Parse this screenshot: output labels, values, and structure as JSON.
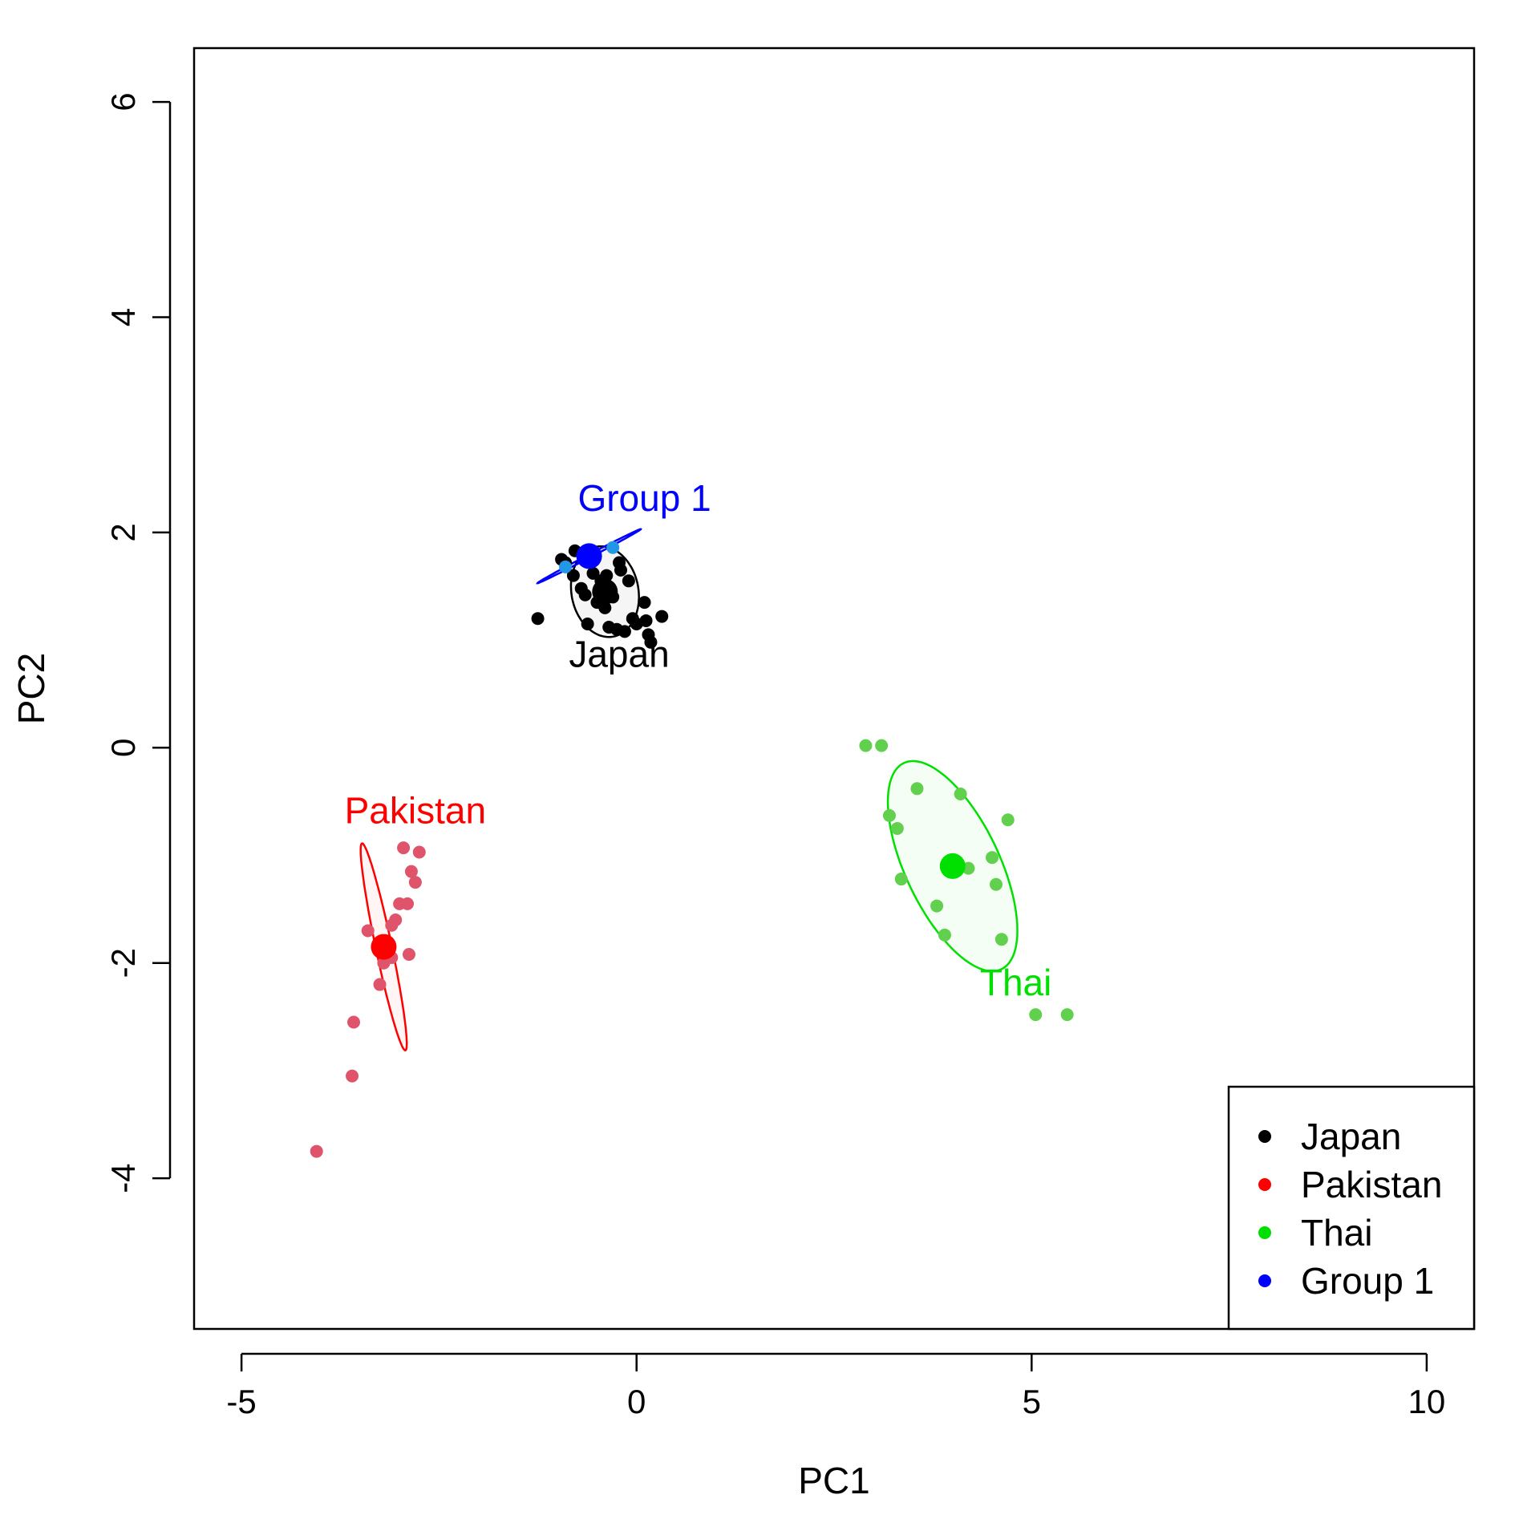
{
  "chart_data": {
    "type": "scatter",
    "title": "",
    "xlabel": "PC1",
    "ylabel": "PC2",
    "xlim": [
      -5.6,
      10.6
    ],
    "ylim": [
      -5.4,
      6.5
    ],
    "xticks": [
      -5,
      0,
      5,
      10
    ],
    "yticks": [
      -4,
      -2,
      0,
      2,
      4,
      6
    ],
    "xtick_labels": [
      "-5",
      "0",
      "5",
      "10"
    ],
    "ytick_labels": [
      "-4",
      "-2",
      "0",
      "2",
      "4",
      "6"
    ],
    "grid": false,
    "legend_position": "bottom-right",
    "series": [
      {
        "name": "Japan",
        "color": "#000000",
        "point_color": "#000000",
        "centroid": [
          -0.4,
          1.45
        ],
        "ellipse": {
          "rx": 0.45,
          "ry": 0.4,
          "angle": -40
        },
        "label": {
          "text": "Japan",
          "x": -0.22,
          "y": 0.75
        },
        "points": [
          [
            -1.25,
            1.2
          ],
          [
            -0.95,
            1.75
          ],
          [
            -0.9,
            1.72
          ],
          [
            -0.8,
            1.6
          ],
          [
            -0.78,
            1.83
          ],
          [
            -0.7,
            1.48
          ],
          [
            -0.65,
            1.42
          ],
          [
            -0.62,
            1.15
          ],
          [
            -0.55,
            1.62
          ],
          [
            -0.5,
            1.35
          ],
          [
            -0.45,
            1.55
          ],
          [
            -0.42,
            1.5
          ],
          [
            -0.4,
            1.3
          ],
          [
            -0.38,
            1.6
          ],
          [
            -0.35,
            1.12
          ],
          [
            -0.3,
            1.4
          ],
          [
            -0.25,
            1.1
          ],
          [
            -0.22,
            1.72
          ],
          [
            -0.2,
            1.65
          ],
          [
            -0.15,
            1.08
          ],
          [
            -0.1,
            1.55
          ],
          [
            -0.05,
            1.2
          ],
          [
            0.0,
            1.15
          ],
          [
            0.1,
            1.35
          ],
          [
            0.12,
            1.18
          ],
          [
            0.15,
            1.05
          ],
          [
            0.18,
            0.98
          ],
          [
            0.32,
            1.22
          ]
        ]
      },
      {
        "name": "Pakistan",
        "color": "#ff0000",
        "point_color": "#df536b",
        "centroid": [
          -3.2,
          -1.85
        ],
        "ellipse": {
          "rx": 1.0,
          "ry": 0.1,
          "angle": -74
        },
        "label": {
          "text": "Pakistan",
          "x": -2.8,
          "y": -0.7
        },
        "points": [
          [
            -4.05,
            -3.75
          ],
          [
            -3.6,
            -3.05
          ],
          [
            -3.58,
            -2.55
          ],
          [
            -3.25,
            -2.2
          ],
          [
            -3.2,
            -2.0
          ],
          [
            -3.1,
            -1.95
          ],
          [
            -3.05,
            -1.6
          ],
          [
            -3.0,
            -1.45
          ],
          [
            -3.1,
            -1.65
          ],
          [
            -3.4,
            -1.7
          ],
          [
            -2.9,
            -1.45
          ],
          [
            -2.85,
            -1.15
          ],
          [
            -2.8,
            -1.25
          ],
          [
            -2.75,
            -0.97
          ],
          [
            -2.95,
            -0.93
          ],
          [
            -2.88,
            -1.92
          ]
        ]
      },
      {
        "name": "Thai",
        "color": "#00e000",
        "point_color": "#61d04f",
        "centroid": [
          4.0,
          -1.1
        ],
        "ellipse": {
          "rx": 1.15,
          "ry": 0.55,
          "angle": -53
        },
        "label": {
          "text": "Thai",
          "x": 4.8,
          "y": -2.3
        },
        "points": [
          [
            2.9,
            0.02
          ],
          [
            3.1,
            0.02
          ],
          [
            3.55,
            -0.38
          ],
          [
            4.1,
            -0.43
          ],
          [
            4.7,
            -0.67
          ],
          [
            3.2,
            -0.63
          ],
          [
            3.3,
            -0.75
          ],
          [
            4.5,
            -1.02
          ],
          [
            4.2,
            -1.12
          ],
          [
            3.35,
            -1.22
          ],
          [
            4.55,
            -1.27
          ],
          [
            3.8,
            -1.47
          ],
          [
            3.9,
            -1.74
          ],
          [
            4.62,
            -1.78
          ],
          [
            5.05,
            -2.48
          ],
          [
            5.45,
            -2.48
          ]
        ]
      },
      {
        "name": "Group 1",
        "color": "#0000ff",
        "point_color": "#2297e6",
        "centroid": [
          -0.6,
          1.78
        ],
        "ellipse": {
          "rx": 0.7,
          "ry": 0.015,
          "angle": 21
        },
        "label": {
          "text": "Group 1",
          "x": 0.1,
          "y": 2.2
        },
        "points": [
          [
            -0.9,
            1.68
          ],
          [
            -0.3,
            1.86
          ]
        ]
      }
    ]
  }
}
